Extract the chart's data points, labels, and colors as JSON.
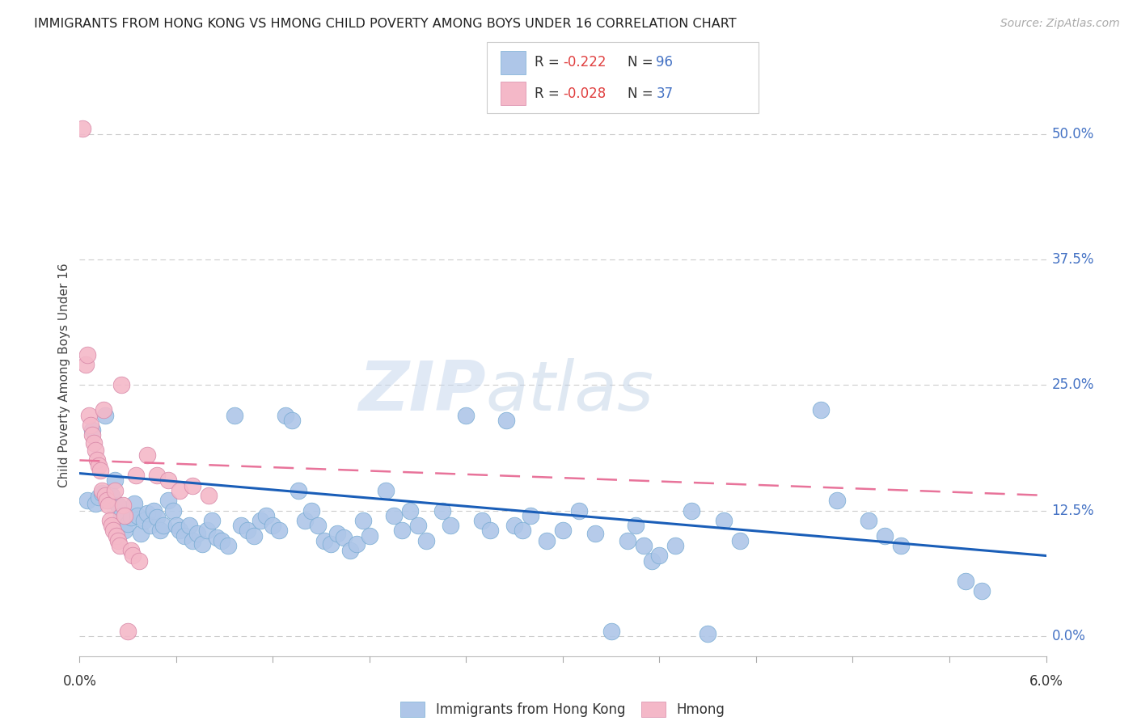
{
  "title": "IMMIGRANTS FROM HONG KONG VS HMONG CHILD POVERTY AMONG BOYS UNDER 16 CORRELATION CHART",
  "source": "Source: ZipAtlas.com",
  "ylabel": "Child Poverty Among Boys Under 16",
  "ytick_vals": [
    0.0,
    12.5,
    25.0,
    37.5,
    50.0
  ],
  "ytick_labels": [
    "0.0%",
    "12.5%",
    "25.0%",
    "37.5%",
    "50.0%"
  ],
  "xlim": [
    0.0,
    6.0
  ],
  "ylim": [
    -2.0,
    54.0
  ],
  "watermark_zip": "ZIP",
  "watermark_atlas": "atlas",
  "hk_color": "#aec6e8",
  "hmong_color": "#f4b8c8",
  "hk_line_color": "#1a5eb8",
  "hmong_line_color": "#e8739a",
  "hk_scatter": [
    [
      0.05,
      13.5
    ],
    [
      0.08,
      20.5
    ],
    [
      0.1,
      13.2
    ],
    [
      0.12,
      13.8
    ],
    [
      0.14,
      14.2
    ],
    [
      0.16,
      22.0
    ],
    [
      0.18,
      13.5
    ],
    [
      0.2,
      14.0
    ],
    [
      0.22,
      15.5
    ],
    [
      0.24,
      13.0
    ],
    [
      0.26,
      12.0
    ],
    [
      0.28,
      10.5
    ],
    [
      0.3,
      11.2
    ],
    [
      0.32,
      11.8
    ],
    [
      0.34,
      13.2
    ],
    [
      0.36,
      12.0
    ],
    [
      0.38,
      10.2
    ],
    [
      0.4,
      11.5
    ],
    [
      0.42,
      12.2
    ],
    [
      0.44,
      11.0
    ],
    [
      0.46,
      12.5
    ],
    [
      0.48,
      11.8
    ],
    [
      0.5,
      10.5
    ],
    [
      0.52,
      11.0
    ],
    [
      0.55,
      13.5
    ],
    [
      0.58,
      12.5
    ],
    [
      0.6,
      11.0
    ],
    [
      0.62,
      10.5
    ],
    [
      0.65,
      10.0
    ],
    [
      0.68,
      11.0
    ],
    [
      0.7,
      9.5
    ],
    [
      0.73,
      10.2
    ],
    [
      0.76,
      9.2
    ],
    [
      0.79,
      10.5
    ],
    [
      0.82,
      11.5
    ],
    [
      0.85,
      9.8
    ],
    [
      0.88,
      9.5
    ],
    [
      0.92,
      9.0
    ],
    [
      0.96,
      22.0
    ],
    [
      1.0,
      11.0
    ],
    [
      1.04,
      10.5
    ],
    [
      1.08,
      10.0
    ],
    [
      1.12,
      11.5
    ],
    [
      1.16,
      12.0
    ],
    [
      1.2,
      11.0
    ],
    [
      1.24,
      10.5
    ],
    [
      1.28,
      22.0
    ],
    [
      1.32,
      21.5
    ],
    [
      1.36,
      14.5
    ],
    [
      1.4,
      11.5
    ],
    [
      1.44,
      12.5
    ],
    [
      1.48,
      11.0
    ],
    [
      1.52,
      9.5
    ],
    [
      1.56,
      9.2
    ],
    [
      1.6,
      10.2
    ],
    [
      1.64,
      9.8
    ],
    [
      1.68,
      8.5
    ],
    [
      1.72,
      9.2
    ],
    [
      1.76,
      11.5
    ],
    [
      1.8,
      10.0
    ],
    [
      1.9,
      14.5
    ],
    [
      1.95,
      12.0
    ],
    [
      2.0,
      10.5
    ],
    [
      2.05,
      12.5
    ],
    [
      2.1,
      11.0
    ],
    [
      2.15,
      9.5
    ],
    [
      2.25,
      12.5
    ],
    [
      2.3,
      11.0
    ],
    [
      2.4,
      22.0
    ],
    [
      2.5,
      11.5
    ],
    [
      2.55,
      10.5
    ],
    [
      2.65,
      21.5
    ],
    [
      2.7,
      11.0
    ],
    [
      2.75,
      10.5
    ],
    [
      2.8,
      12.0
    ],
    [
      2.9,
      9.5
    ],
    [
      3.0,
      10.5
    ],
    [
      3.1,
      12.5
    ],
    [
      3.2,
      10.2
    ],
    [
      3.3,
      0.5
    ],
    [
      3.4,
      9.5
    ],
    [
      3.45,
      11.0
    ],
    [
      3.5,
      9.0
    ],
    [
      3.55,
      7.5
    ],
    [
      3.6,
      8.0
    ],
    [
      3.7,
      9.0
    ],
    [
      3.8,
      12.5
    ],
    [
      3.9,
      0.2
    ],
    [
      4.0,
      11.5
    ],
    [
      4.1,
      9.5
    ],
    [
      4.6,
      22.5
    ],
    [
      4.7,
      13.5
    ],
    [
      4.9,
      11.5
    ],
    [
      5.0,
      10.0
    ],
    [
      5.1,
      9.0
    ],
    [
      5.5,
      5.5
    ],
    [
      5.6,
      4.5
    ]
  ],
  "hmong_scatter": [
    [
      0.02,
      50.5
    ],
    [
      0.04,
      27.0
    ],
    [
      0.05,
      28.0
    ],
    [
      0.06,
      22.0
    ],
    [
      0.07,
      21.0
    ],
    [
      0.08,
      20.0
    ],
    [
      0.09,
      19.2
    ],
    [
      0.1,
      18.5
    ],
    [
      0.11,
      17.5
    ],
    [
      0.12,
      17.0
    ],
    [
      0.13,
      16.5
    ],
    [
      0.14,
      14.5
    ],
    [
      0.15,
      22.5
    ],
    [
      0.16,
      14.0
    ],
    [
      0.17,
      13.5
    ],
    [
      0.18,
      13.0
    ],
    [
      0.19,
      11.5
    ],
    [
      0.2,
      11.0
    ],
    [
      0.21,
      10.5
    ],
    [
      0.22,
      14.5
    ],
    [
      0.23,
      10.0
    ],
    [
      0.24,
      9.5
    ],
    [
      0.25,
      9.0
    ],
    [
      0.26,
      25.0
    ],
    [
      0.27,
      13.0
    ],
    [
      0.28,
      12.0
    ],
    [
      0.3,
      0.5
    ],
    [
      0.32,
      8.5
    ],
    [
      0.33,
      8.0
    ],
    [
      0.35,
      16.0
    ],
    [
      0.37,
      7.5
    ],
    [
      0.42,
      18.0
    ],
    [
      0.48,
      16.0
    ],
    [
      0.55,
      15.5
    ],
    [
      0.62,
      14.5
    ],
    [
      0.7,
      15.0
    ],
    [
      0.8,
      14.0
    ]
  ],
  "hk_trend_x": [
    0.0,
    6.0
  ],
  "hk_trend_y": [
    16.2,
    8.0
  ],
  "hmong_trend_x": [
    0.0,
    6.0
  ],
  "hmong_trend_y": [
    17.5,
    14.0
  ]
}
